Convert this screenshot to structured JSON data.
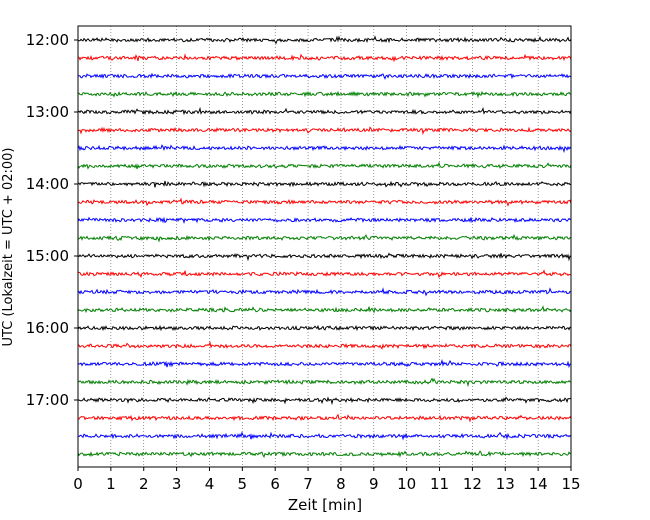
{
  "chart_data": {
    "type": "line",
    "title": "",
    "xlabel": "Zeit  [min]",
    "ylabel": "UTC (Lokalzeit = UTC + 02:00)",
    "xlim": [
      0,
      15
    ],
    "x_ticks": [
      "0",
      "1",
      "2",
      "3",
      "4",
      "5",
      "6",
      "7",
      "8",
      "9",
      "10",
      "11",
      "12",
      "13",
      "14",
      "15"
    ],
    "y_ticks": [
      "12:00",
      "13:00",
      "14:00",
      "15:00",
      "16:00",
      "17:00"
    ],
    "grid": "vertical dotted lines at each minute",
    "colors_cycle": [
      "#000000",
      "#ff0000",
      "#0000ff",
      "#008000"
    ],
    "series": [
      {
        "start": "12:00",
        "color": "#000000"
      },
      {
        "start": "12:15",
        "color": "#ff0000"
      },
      {
        "start": "12:30",
        "color": "#0000ff"
      },
      {
        "start": "12:45",
        "color": "#008000"
      },
      {
        "start": "13:00",
        "color": "#000000"
      },
      {
        "start": "13:15",
        "color": "#ff0000"
      },
      {
        "start": "13:30",
        "color": "#0000ff"
      },
      {
        "start": "13:45",
        "color": "#008000"
      },
      {
        "start": "14:00",
        "color": "#000000"
      },
      {
        "start": "14:15",
        "color": "#ff0000"
      },
      {
        "start": "14:30",
        "color": "#0000ff"
      },
      {
        "start": "14:45",
        "color": "#008000"
      },
      {
        "start": "15:00",
        "color": "#000000"
      },
      {
        "start": "15:15",
        "color": "#ff0000"
      },
      {
        "start": "15:30",
        "color": "#0000ff"
      },
      {
        "start": "15:45",
        "color": "#008000"
      },
      {
        "start": "16:00",
        "color": "#000000"
      },
      {
        "start": "16:15",
        "color": "#ff0000"
      },
      {
        "start": "16:30",
        "color": "#0000ff"
      },
      {
        "start": "16:45",
        "color": "#008000"
      },
      {
        "start": "17:00",
        "color": "#000000"
      },
      {
        "start": "17:15",
        "color": "#ff0000"
      },
      {
        "start": "17:30",
        "color": "#0000ff"
      },
      {
        "start": "17:45",
        "color": "#008000"
      }
    ]
  }
}
